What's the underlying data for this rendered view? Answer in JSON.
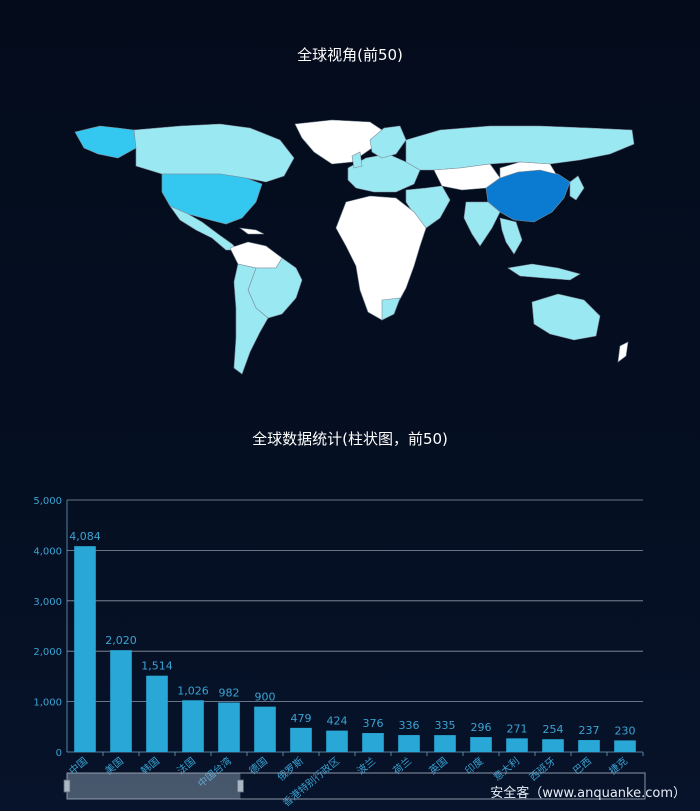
{
  "map": {
    "title": "全球视角(前50)",
    "colors": {
      "ocean": "none",
      "land_none": "#ffffff",
      "low": "#9ae8f2",
      "mid": "#34c8f0",
      "high": "#0a7bd0",
      "border": "#8a9aa8"
    }
  },
  "chart_data": {
    "type": "bar",
    "title": "全球数据统计(柱状图，前50)",
    "categories": [
      "中国",
      "美国",
      "韩国",
      "法国",
      "中国台湾",
      "德国",
      "俄罗斯",
      "香港特别行政区",
      "波兰",
      "荷兰",
      "英国",
      "印度",
      "意大利",
      "西班牙",
      "巴西",
      "捷克"
    ],
    "values": [
      4084,
      2020,
      1514,
      1026,
      982,
      900,
      479,
      424,
      376,
      336,
      335,
      296,
      271,
      254,
      237,
      230
    ],
    "value_labels": [
      "4,084",
      "2,020",
      "1,514",
      "1,026",
      "982",
      "900",
      "479",
      "424",
      "376",
      "336",
      "335",
      "296",
      "271",
      "254",
      "237",
      "230"
    ],
    "ylim": [
      0,
      5000
    ],
    "yticks": [
      "0",
      "1,000",
      "2,000",
      "3,000",
      "4,000",
      "5,000"
    ],
    "ytick_values": [
      0,
      1000,
      2000,
      3000,
      4000,
      5000
    ],
    "grid": true,
    "bar_color": "#29a8d8",
    "datazoom": {
      "start_fraction": 0.0,
      "end_fraction": 0.3
    }
  },
  "watermark": "安全客（www.anquanke.com）"
}
